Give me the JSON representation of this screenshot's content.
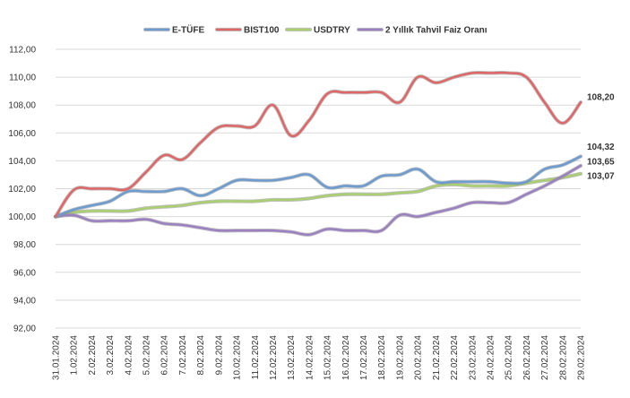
{
  "chart_data": {
    "type": "line",
    "title": "",
    "xlabel": "",
    "ylabel": "",
    "ylim": [
      92,
      112
    ],
    "yticks": [
      "92,00",
      "94,00",
      "96,00",
      "98,00",
      "100,00",
      "102,00",
      "104,00",
      "106,00",
      "108,00",
      "110,00",
      "112,00"
    ],
    "grid": true,
    "legend_position": "top",
    "categories": [
      "31.01.2024",
      "1.02.2024",
      "2.02.2024",
      "3.02.2024",
      "4.02.2024",
      "5.02.2024",
      "6.02.2024",
      "7.02.2024",
      "8.02.2024",
      "9.02.2024",
      "10.02.2024",
      "11.02.2024",
      "12.02.2024",
      "13.02.2024",
      "14.02.2024",
      "15.02.2024",
      "16.02.2024",
      "17.02.2024",
      "18.02.2024",
      "19.02.2024",
      "20.02.2024",
      "21.02.2024",
      "22.02.2024",
      "23.02.2024",
      "24.02.2024",
      "25.02.2024",
      "26.02.2024",
      "27.02.2024",
      "28.02.2024",
      "29.02.2024"
    ],
    "series": [
      {
        "name": "E-TÜFE",
        "color": "#6a9bd1",
        "values": [
          100.0,
          100.5,
          100.8,
          101.1,
          101.8,
          101.8,
          101.8,
          102.0,
          101.5,
          102.0,
          102.6,
          102.6,
          102.6,
          102.8,
          103.0,
          102.1,
          102.2,
          102.2,
          102.9,
          103.0,
          103.4,
          102.5,
          102.5,
          102.5,
          102.5,
          102.4,
          102.5,
          103.4,
          103.7,
          104.32
        ],
        "end_label": "104,32"
      },
      {
        "name": "BIST100",
        "color": "#e06666",
        "values": [
          100.0,
          101.9,
          102.0,
          102.0,
          102.0,
          103.2,
          104.4,
          104.1,
          105.3,
          106.4,
          106.5,
          106.5,
          108.0,
          105.8,
          106.9,
          108.8,
          108.9,
          108.9,
          108.9,
          108.2,
          110.0,
          109.6,
          110.0,
          110.3,
          110.3,
          110.3,
          110.0,
          108.2,
          106.7,
          108.2
        ],
        "end_label": "108,20"
      },
      {
        "name": "USDTRY",
        "color": "#a9cf6f",
        "values": [
          100.0,
          100.3,
          100.4,
          100.4,
          100.4,
          100.6,
          100.7,
          100.8,
          101.0,
          101.1,
          101.1,
          101.1,
          101.2,
          101.2,
          101.3,
          101.5,
          101.6,
          101.6,
          101.6,
          101.7,
          101.8,
          102.2,
          102.3,
          102.2,
          102.2,
          102.2,
          102.4,
          102.6,
          102.8,
          103.07
        ],
        "end_label": "103,07"
      },
      {
        "name": "2 Yıllık Tahvil Faiz Oranı",
        "color": "#9b7fc2",
        "values": [
          100.0,
          100.1,
          99.7,
          99.7,
          99.7,
          99.8,
          99.5,
          99.4,
          99.2,
          99.0,
          99.0,
          99.0,
          99.0,
          98.9,
          98.7,
          99.1,
          99.0,
          99.0,
          99.0,
          100.1,
          100.0,
          100.3,
          100.6,
          101.0,
          101.0,
          101.0,
          101.6,
          102.2,
          102.9,
          103.65
        ],
        "end_label": "103,65"
      }
    ]
  }
}
